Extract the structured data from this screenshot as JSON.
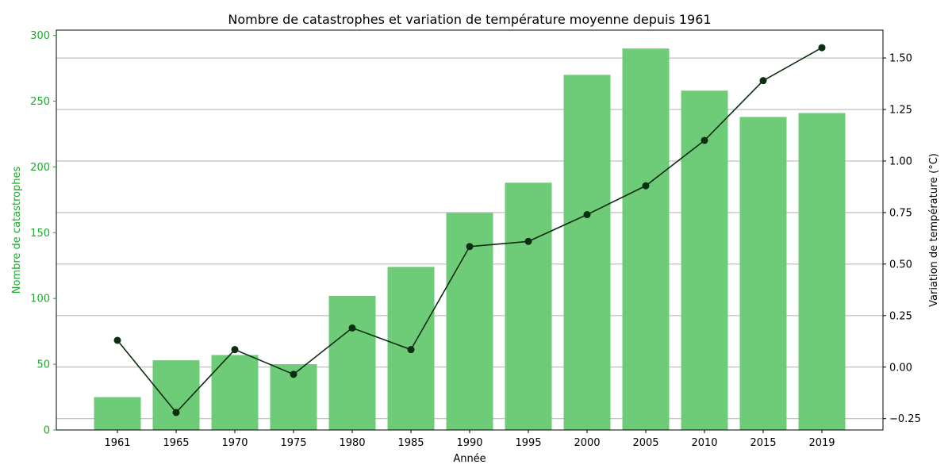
{
  "colors": {
    "bar": "#6ecc78",
    "left_axis": "#1ea82e",
    "line": "#0c2e12",
    "grid": "#b0b0b0",
    "text": "#000000"
  },
  "chart_data": {
    "type": "bar",
    "title": "Nombre de catastrophes et variation de température moyenne depuis 1961",
    "xlabel": "Année",
    "ylabel": "Nombre de catastrophes",
    "y2label": "Variation de température (°C)",
    "categories": [
      "1961",
      "1965",
      "1970",
      "1975",
      "1980",
      "1985",
      "1990",
      "1995",
      "2000",
      "2005",
      "2010",
      "2015",
      "2019"
    ],
    "ylim": [
      0,
      304
    ],
    "y2lim": [
      -0.305,
      1.635
    ],
    "yticks": [
      0,
      50,
      100,
      150,
      200,
      250,
      300
    ],
    "y2ticks": [
      -0.25,
      0.0,
      0.25,
      0.5,
      0.75,
      1.0,
      1.25,
      1.5
    ],
    "y2tick_labels": [
      "−0.25",
      "0.00",
      "0.25",
      "0.50",
      "0.75",
      "1.00",
      "1.25",
      "1.50"
    ],
    "grid": "right-axis horizontal",
    "series": [
      {
        "type": "bar",
        "axis": "left",
        "values": [
          25,
          53,
          57,
          50,
          102,
          124,
          165,
          188,
          270,
          290,
          258,
          238,
          241
        ]
      },
      {
        "type": "line",
        "axis": "right",
        "marker": "circle",
        "values": [
          0.13,
          -0.22,
          0.085,
          -0.035,
          0.19,
          0.085,
          0.585,
          0.61,
          0.74,
          0.88,
          1.1,
          1.39,
          1.55
        ]
      }
    ]
  }
}
